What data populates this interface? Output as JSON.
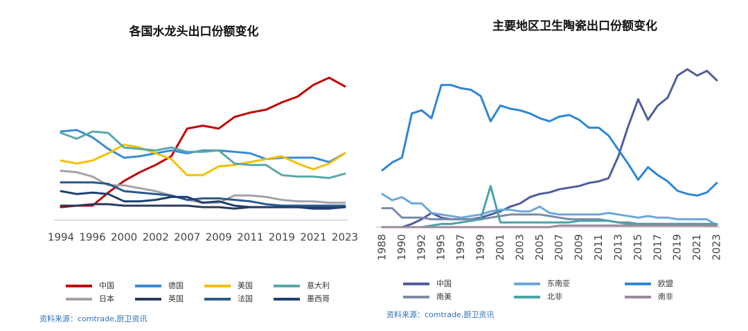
{
  "chart_data": [
    {
      "type": "line",
      "title": "各国水龙头出口份额变化",
      "categories": [
        "1994",
        null,
        "1996",
        null,
        "2000",
        null,
        "2002",
        null,
        "2007",
        null,
        "2009",
        null,
        "2011",
        null,
        "2019",
        null,
        "2021",
        null,
        "2023"
      ],
      "ylim": [
        0,
        100
      ],
      "series": [
        {
          "name": "中国",
          "color": "#c00000",
          "values": [
            9,
            10,
            10,
            19,
            27,
            33,
            38,
            44,
            63,
            65,
            63,
            71,
            74,
            76,
            81,
            85,
            93,
            98,
            92
          ]
        },
        {
          "name": "德国",
          "color": "#3a8ad4",
          "values": [
            61,
            62,
            57,
            49,
            43,
            44,
            46,
            48,
            46,
            48,
            48,
            47,
            46,
            42,
            43,
            43,
            43,
            40,
            46
          ]
        },
        {
          "name": "美国",
          "color": "#f5c000",
          "values": [
            41,
            39,
            41,
            46,
            52,
            50,
            46,
            42,
            31,
            31,
            37,
            38,
            40,
            42,
            44,
            39,
            35,
            39,
            46
          ]
        },
        {
          "name": "意大利",
          "color": "#5aa8a8",
          "values": [
            60,
            56,
            61,
            60,
            50,
            49,
            48,
            50,
            47,
            47,
            48,
            39,
            38,
            38,
            31,
            30,
            30,
            29,
            32
          ]
        },
        {
          "name": "日本",
          "color": "#a8a0a8",
          "values": [
            34,
            33,
            30,
            24,
            24,
            22,
            20,
            17,
            14,
            12,
            12,
            17,
            17,
            16,
            14,
            13,
            13,
            12,
            12
          ]
        },
        {
          "name": "英国",
          "color": "#2a3a5a",
          "values": [
            10,
            10,
            11,
            11,
            10,
            10,
            10,
            10,
            10,
            9,
            9,
            8,
            9,
            9,
            9,
            9,
            9,
            9,
            9
          ]
        },
        {
          "name": "法国",
          "color": "#2a5a8a",
          "values": [
            26,
            26,
            26,
            25,
            20,
            19,
            18,
            17,
            14,
            15,
            15,
            14,
            13,
            11,
            10,
            10,
            10,
            10,
            10
          ]
        },
        {
          "name": "墨西哥",
          "color": "#1f3f6f",
          "values": [
            20,
            18,
            19,
            18,
            13,
            13,
            14,
            16,
            16,
            12,
            13,
            10,
            9,
            9,
            9,
            9,
            8,
            8,
            9
          ]
        }
      ],
      "source": "资料来源：comtrade,厨卫资讯"
    },
    {
      "type": "line",
      "title": "主要地区卫生陶瓷出口份额变化",
      "categories": [
        "1988",
        null,
        "1990",
        null,
        "1992",
        null,
        "1995",
        null,
        "1997",
        null,
        "1999",
        null,
        "2001",
        null,
        "2003",
        null,
        "2005",
        null,
        "2007",
        null,
        "2009",
        null,
        "2011",
        null,
        "2013",
        null,
        "2015",
        null,
        "2017",
        null,
        "2019",
        null,
        "2021",
        null,
        "2023"
      ],
      "ylim": [
        0,
        100
      ],
      "series": [
        {
          "name": "中国",
          "color": "#4f5d9c",
          "values": [
            null,
            null,
            0,
            2,
            5,
            9,
            6,
            5,
            5,
            5,
            6,
            8,
            10,
            13,
            15,
            19,
            21,
            22,
            24,
            25,
            26,
            28,
            29,
            31,
            45,
            64,
            81,
            68,
            77,
            82,
            96,
            100,
            96,
            99,
            93
          ]
        },
        {
          "name": "东南亚",
          "color": "#6aa8dc",
          "values": [
            21,
            17,
            19,
            15,
            15,
            9,
            8,
            7,
            6,
            7,
            8,
            10,
            11,
            11,
            10,
            10,
            13,
            9,
            8,
            8,
            8,
            8,
            8,
            9,
            8,
            7,
            6,
            7,
            6,
            6,
            5,
            5,
            5,
            5,
            1
          ]
        },
        {
          "name": "欧盟",
          "color": "#2e86d4",
          "values": [
            36,
            41,
            44,
            72,
            74,
            69,
            90,
            90,
            88,
            87,
            83,
            67,
            77,
            75,
            74,
            72,
            69,
            67,
            70,
            71,
            68,
            63,
            63,
            58,
            49,
            40,
            30,
            38,
            33,
            29,
            23,
            21,
            20,
            22,
            28
          ]
        },
        {
          "name": "南美",
          "color": "#7a8aa8",
          "values": [
            12,
            12,
            6,
            6,
            6,
            5,
            5,
            5,
            5,
            5,
            5,
            6,
            7,
            8,
            8,
            8,
            8,
            7,
            6,
            5,
            5,
            5,
            5,
            4,
            3,
            3,
            2,
            2,
            2,
            2,
            2,
            2,
            2,
            1,
            1
          ]
        },
        {
          "name": "北非",
          "color": "#4aa3a8",
          "values": [
            0,
            0,
            0,
            0,
            0,
            1,
            2,
            2,
            3,
            4,
            5,
            26,
            3,
            3,
            3,
            3,
            3,
            3,
            3,
            3,
            4,
            4,
            4,
            4,
            3,
            2,
            2,
            2,
            2,
            2,
            2,
            2,
            2,
            2,
            2
          ]
        },
        {
          "name": "南非",
          "color": "#9a8a9a",
          "values": [
            0,
            0,
            0,
            0,
            0,
            0,
            0,
            0,
            0,
            0,
            0,
            0,
            0,
            0,
            0,
            0,
            0,
            0,
            1,
            1,
            1,
            1,
            1,
            1,
            1,
            1,
            1,
            1,
            1,
            1,
            1,
            1,
            1,
            1,
            1
          ]
        }
      ],
      "source": "资料来源：comtrade,厨卫资讯"
    }
  ]
}
